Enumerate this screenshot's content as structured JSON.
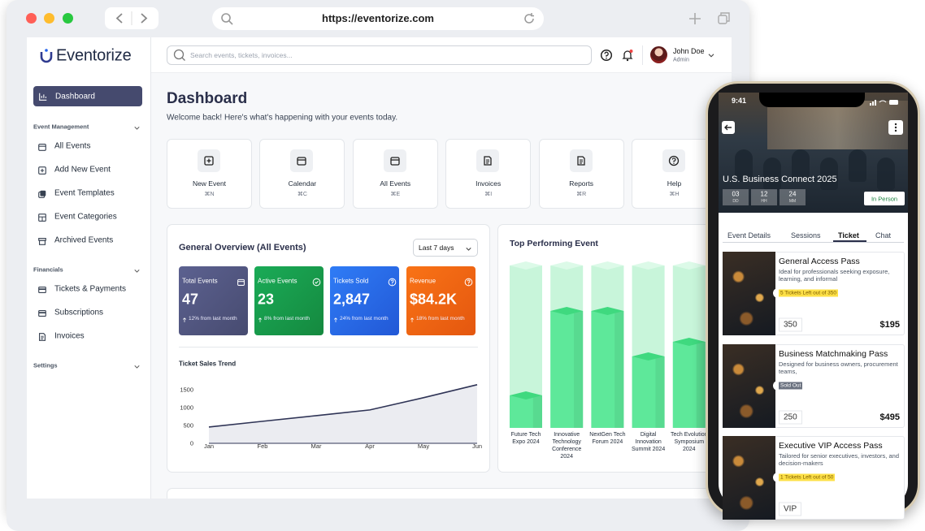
{
  "browser": {
    "url": "https://eventorize.com"
  },
  "sidebar": {
    "logo": "Eventorize",
    "active": "Dashboard",
    "sections": [
      {
        "title": "Event Management",
        "items": [
          "All Events",
          "Add New Event",
          "Event Templates",
          "Event Categories",
          "Archived Events"
        ]
      },
      {
        "title": "Financials",
        "items": [
          "Tickets & Payments",
          "Subscriptions",
          "Invoices"
        ]
      },
      {
        "title": "Settings",
        "items": []
      }
    ]
  },
  "topbar": {
    "search_placeholder": "Search events, tickets, invoices...",
    "user": {
      "name": "John Doe",
      "role": "Admin"
    }
  },
  "header": {
    "title": "Dashboard",
    "subtitle": "Welcome back! Here's what's happening with your events today."
  },
  "quick_actions": [
    {
      "label": "New Event",
      "shortcut": "⌘N"
    },
    {
      "label": "Calendar",
      "shortcut": "⌘C"
    },
    {
      "label": "All Events",
      "shortcut": "⌘E"
    },
    {
      "label": "Invoices",
      "shortcut": "⌘I"
    },
    {
      "label": "Reports",
      "shortcut": "⌘R"
    },
    {
      "label": "Help",
      "shortcut": "⌘H"
    }
  ],
  "overview": {
    "title": "General Overview (All Events)",
    "period": "Last 7 days",
    "stats": [
      {
        "label": "Total Events",
        "value": "47",
        "change": "12% from last month"
      },
      {
        "label": "Active Events",
        "value": "23",
        "change": "8% from last month"
      },
      {
        "label": "Tickets Sold",
        "value": "2,847",
        "change": "24% from last month"
      },
      {
        "label": "Revenue",
        "value": "$84.2K",
        "change": "18% from last month"
      }
    ],
    "trend": {
      "type": "line",
      "title": "Ticket Sales Trend",
      "categories": [
        "Jan",
        "Feb",
        "Mar",
        "Apr",
        "May",
        "Jun"
      ],
      "values": [
        455,
        615,
        773,
        932,
        1273,
        1636
      ],
      "ylim": [
        0,
        1700
      ],
      "yticks": [
        0,
        500,
        1000,
        1500
      ],
      "color": "#2f3456"
    }
  },
  "top_events": {
    "type": "bar",
    "title": "Top Performing Event",
    "categories": [
      "Future Tech Expo 2024",
      "Innovative Technology Conference 2024",
      "NextGen Tech Forum 2024",
      "Digital Innovation Summit 2024",
      "Tech Evolution Symposium 2024"
    ],
    "values": [
      20,
      72,
      72,
      44,
      53
    ],
    "ylim": [
      0,
      100
    ],
    "color": "#5ee89a"
  },
  "phone": {
    "time": "9:41",
    "event_title": "U.S. Business Connect 2025",
    "countdown": [
      {
        "value": "03",
        "unit": "DD"
      },
      {
        "value": "12",
        "unit": "HH"
      },
      {
        "value": "24",
        "unit": "MM"
      }
    ],
    "mode": "In Person",
    "tabs": [
      "Event Details",
      "Sessions",
      "Ticket",
      "Chat"
    ],
    "active_tab": 2,
    "tickets": [
      {
        "name": "General Access Pass",
        "description": "Ideal for professionals seeking exposure, learning, and informal",
        "badge": "5 Tickets Left out of 350",
        "quantity": "350",
        "price": "$195"
      },
      {
        "name": "Business Matchmaking Pass",
        "description": "Designed for business owners, procurement teams,",
        "badge": "Sold Out",
        "quantity": "250",
        "price": "$495"
      },
      {
        "name": "Executive VIP Access Pass",
        "description": "Tailored for senior executives, investors, and decision-makers",
        "badge": "1 Tickets Left out of 50",
        "quantity": "VIP"
      }
    ]
  }
}
